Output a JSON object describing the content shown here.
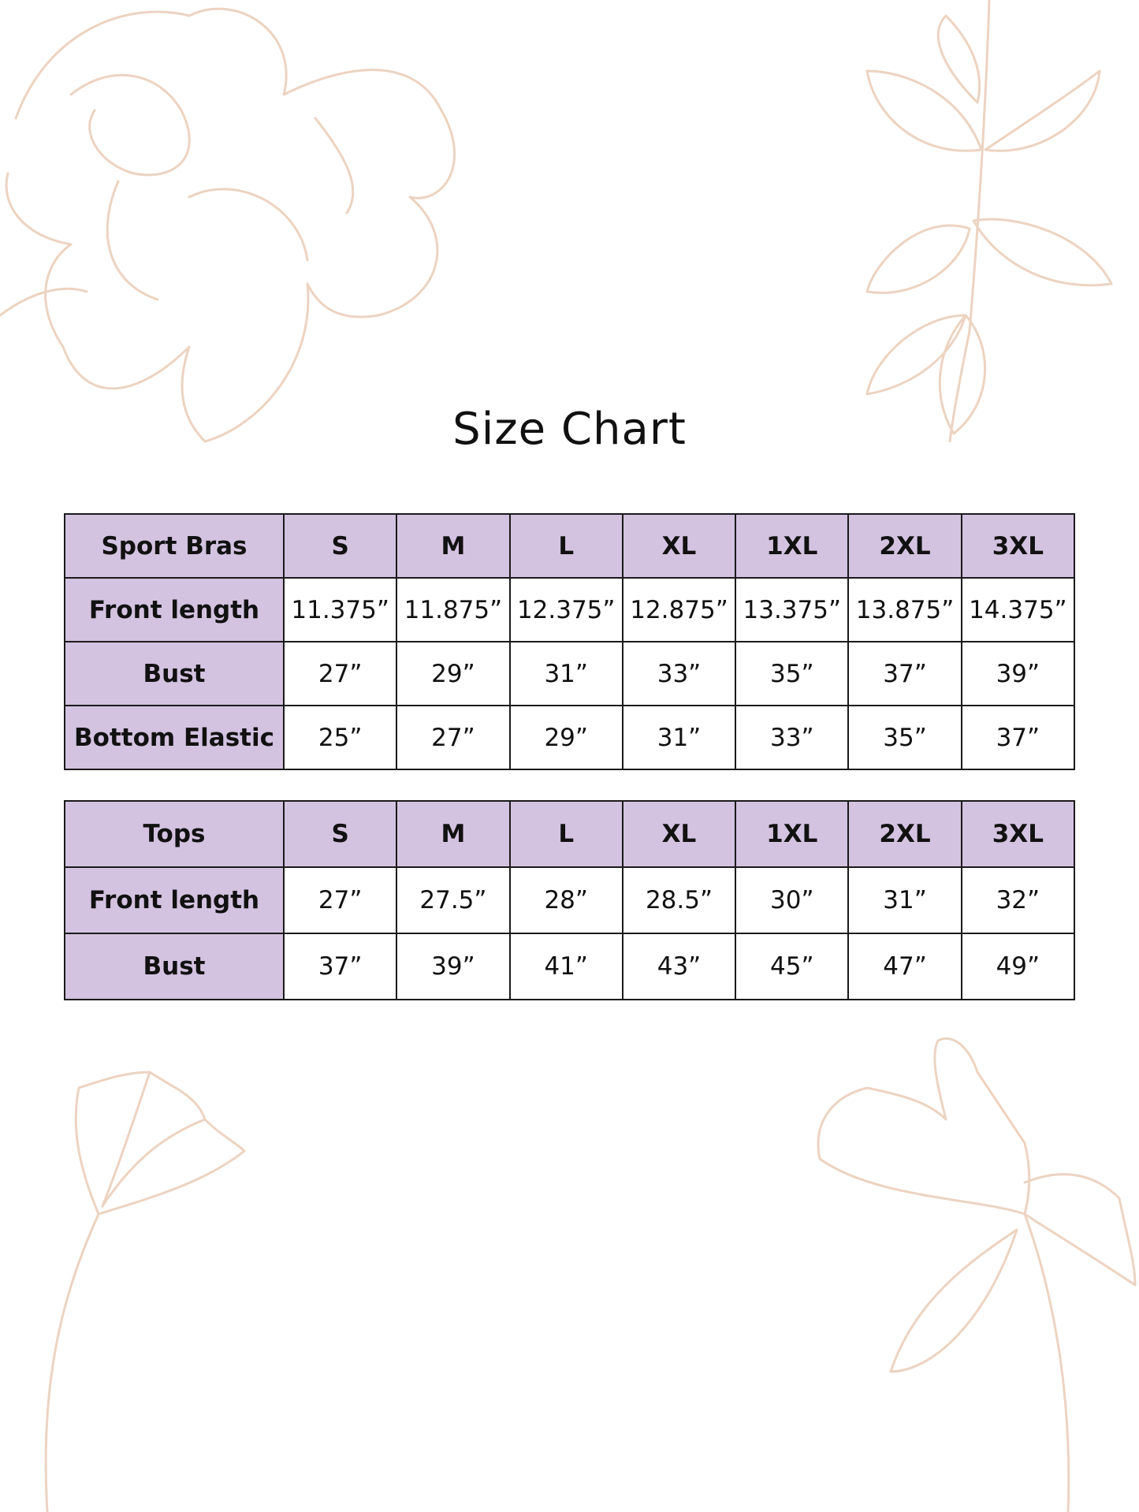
{
  "title": "Size Chart",
  "colors": {
    "header_fill": "#d3c2e0",
    "border": "#1a1a1a",
    "floral_stroke": "#ecd3c1"
  },
  "sizes": [
    "S",
    "M",
    "L",
    "XL",
    "1XL",
    "2XL",
    "3XL"
  ],
  "sport_bras": {
    "label": "Sport Bras",
    "rows": [
      {
        "label": "Front length",
        "values": [
          "11.375”",
          "11.875”",
          "12.375”",
          "12.875”",
          "13.375”",
          "13.875”",
          "14.375”"
        ]
      },
      {
        "label": "Bust",
        "values": [
          "27”",
          "29”",
          "31”",
          "33”",
          "35”",
          "37”",
          "39”"
        ]
      },
      {
        "label": "Bottom Elastic",
        "values": [
          "25”",
          "27”",
          "29”",
          "31”",
          "33”",
          "35”",
          "37”"
        ]
      }
    ]
  },
  "tops": {
    "label": "Tops",
    "rows": [
      {
        "label": "Front length",
        "values": [
          "27”",
          "27.5”",
          "28”",
          "28.5”",
          "30”",
          "31”",
          "32”"
        ]
      },
      {
        "label": "Bust",
        "values": [
          "37”",
          "39”",
          "41”",
          "43”",
          "45”",
          "47”",
          "49”"
        ]
      }
    ]
  }
}
